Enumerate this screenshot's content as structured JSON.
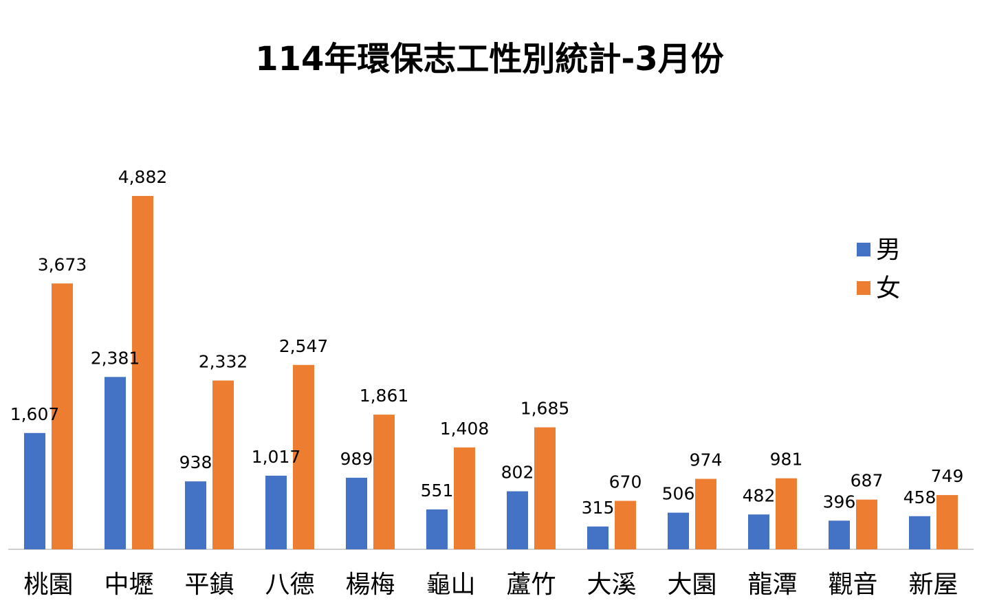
{
  "chart_data": {
    "type": "bar",
    "title": "114年環保志工性別統計-3月份",
    "xlabel": "",
    "ylabel": "",
    "categories": [
      "桃園",
      "中壢",
      "平鎮",
      "八德",
      "楊梅",
      "龜山",
      "蘆竹",
      "大溪",
      "大園",
      "龍潭",
      "觀音",
      "新屋"
    ],
    "series": [
      {
        "name": "男",
        "color": "#4472C4",
        "values": [
          1607,
          2381,
          938,
          1017,
          989,
          551,
          802,
          315,
          506,
          482,
          396,
          458
        ],
        "labels": [
          "1,607",
          "2,381",
          "938",
          "1,017",
          "989",
          "551",
          "802",
          "315",
          "506",
          "482",
          "396",
          "458"
        ]
      },
      {
        "name": "女",
        "color": "#ED7D31",
        "values": [
          3673,
          4882,
          2332,
          2547,
          1861,
          1408,
          1685,
          670,
          974,
          981,
          687,
          749
        ],
        "labels": [
          "3,673",
          "4,882",
          "2,332",
          "2,547",
          "1,861",
          "1,408",
          "1,685",
          "670",
          "974",
          "981",
          "687",
          "749"
        ]
      }
    ],
    "ylim": [
      0,
      4882
    ],
    "grid": false,
    "legend_position": "right"
  }
}
